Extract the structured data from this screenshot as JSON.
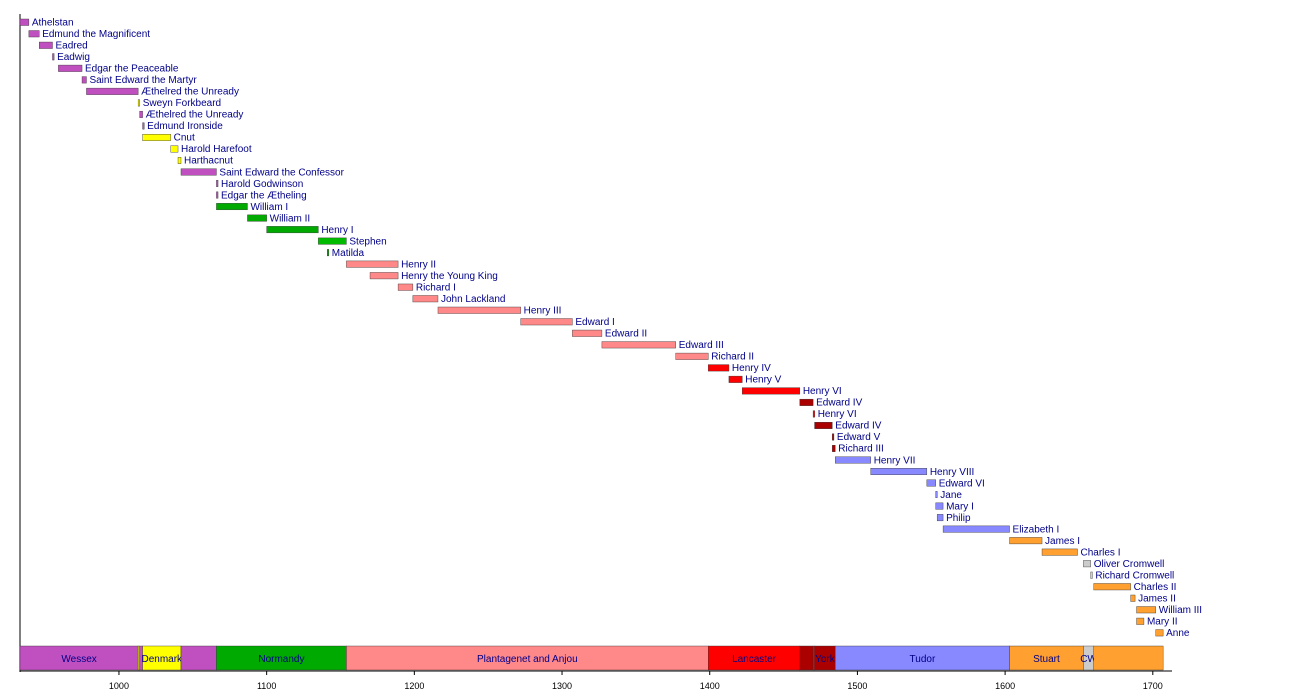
{
  "chart_data": {
    "type": "timeline",
    "title": "",
    "xlim": [
      933,
      1713
    ],
    "ticks": [
      1000,
      1100,
      1200,
      1300,
      1400,
      1500,
      1600,
      1700
    ],
    "colors": {
      "Wessex": "#c050c0",
      "Denmark": "#ffff00",
      "Normandy": "#00aa00",
      "Blois": "#00bb00",
      "Plantagenet and Anjou": "#ff8888",
      "Lancaster": "#ff0000",
      "York": "#aa0000",
      "Tudor": "#8888ff",
      "Stuart": "#ffa030",
      "Commonwealth": "#cccccc"
    },
    "reigns": [
      {
        "name": "Athelstan",
        "start": 924,
        "end": 939,
        "house": "Wessex"
      },
      {
        "name": "Edmund the Magnificent",
        "start": 939,
        "end": 946,
        "house": "Wessex"
      },
      {
        "name": "Eadred",
        "start": 946,
        "end": 955,
        "house": "Wessex"
      },
      {
        "name": "Eadwig",
        "start": 955,
        "end": 956,
        "house": "Wessex"
      },
      {
        "name": "Edgar the Peaceable",
        "start": 959,
        "end": 975,
        "house": "Wessex"
      },
      {
        "name": "Saint Edward the Martyr",
        "start": 975,
        "end": 978,
        "house": "Wessex"
      },
      {
        "name": "Æthelred the Unready",
        "start": 978,
        "end": 1013,
        "house": "Wessex"
      },
      {
        "name": "Sweyn Forkbeard",
        "start": 1013,
        "end": 1014,
        "house": "Denmark"
      },
      {
        "name": "Æthelred the Unready",
        "start": 1014,
        "end": 1016,
        "house": "Wessex"
      },
      {
        "name": "Edmund Ironside",
        "start": 1016,
        "end": 1016.6,
        "house": "Wessex"
      },
      {
        "name": "Cnut",
        "start": 1016,
        "end": 1035,
        "house": "Denmark"
      },
      {
        "name": "Harold Harefoot",
        "start": 1035,
        "end": 1040,
        "house": "Denmark"
      },
      {
        "name": "Harthacnut",
        "start": 1040,
        "end": 1042,
        "house": "Denmark"
      },
      {
        "name": "Saint Edward the Confessor",
        "start": 1042,
        "end": 1066,
        "house": "Wessex"
      },
      {
        "name": "Harold Godwinson",
        "start": 1066,
        "end": 1066.6,
        "house": "Wessex"
      },
      {
        "name": "Edgar the Ætheling",
        "start": 1066,
        "end": 1066.6,
        "house": "Wessex"
      },
      {
        "name": "William I",
        "start": 1066,
        "end": 1087,
        "house": "Normandy"
      },
      {
        "name": "William II",
        "start": 1087,
        "end": 1100,
        "house": "Normandy"
      },
      {
        "name": "Henry I",
        "start": 1100,
        "end": 1135,
        "house": "Normandy"
      },
      {
        "name": "Stephen",
        "start": 1135,
        "end": 1154,
        "house": "Blois"
      },
      {
        "name": "Matilda",
        "start": 1141,
        "end": 1141.6,
        "house": "Normandy"
      },
      {
        "name": "Henry II",
        "start": 1154,
        "end": 1189,
        "house": "Plantagenet and Anjou"
      },
      {
        "name": "Henry the Young King",
        "start": 1170,
        "end": 1189,
        "house": "Plantagenet and Anjou"
      },
      {
        "name": "Richard I",
        "start": 1189,
        "end": 1199,
        "house": "Plantagenet and Anjou"
      },
      {
        "name": "John Lackland",
        "start": 1199,
        "end": 1216,
        "house": "Plantagenet and Anjou"
      },
      {
        "name": "Henry III",
        "start": 1216,
        "end": 1272,
        "house": "Plantagenet and Anjou"
      },
      {
        "name": "Edward I",
        "start": 1272,
        "end": 1307,
        "house": "Plantagenet and Anjou"
      },
      {
        "name": "Edward II",
        "start": 1307,
        "end": 1327,
        "house": "Plantagenet and Anjou"
      },
      {
        "name": "Edward III",
        "start": 1327,
        "end": 1377,
        "house": "Plantagenet and Anjou"
      },
      {
        "name": "Richard II",
        "start": 1377,
        "end": 1399,
        "house": "Plantagenet and Anjou"
      },
      {
        "name": "Henry IV",
        "start": 1399,
        "end": 1413,
        "house": "Lancaster"
      },
      {
        "name": "Henry V",
        "start": 1413,
        "end": 1422,
        "house": "Lancaster"
      },
      {
        "name": "Henry VI",
        "start": 1422,
        "end": 1461,
        "house": "Lancaster"
      },
      {
        "name": "Edward IV",
        "start": 1461,
        "end": 1470,
        "house": "York"
      },
      {
        "name": "Henry VI",
        "start": 1470,
        "end": 1471,
        "house": "Lancaster"
      },
      {
        "name": "Edward IV",
        "start": 1471,
        "end": 1483,
        "house": "York"
      },
      {
        "name": "Edward V",
        "start": 1483,
        "end": 1483.6,
        "house": "York"
      },
      {
        "name": "Richard III",
        "start": 1483,
        "end": 1485,
        "house": "York"
      },
      {
        "name": "Henry VII",
        "start": 1485,
        "end": 1509,
        "house": "Tudor"
      },
      {
        "name": "Henry VIII",
        "start": 1509,
        "end": 1547,
        "house": "Tudor"
      },
      {
        "name": "Edward VI",
        "start": 1547,
        "end": 1553,
        "house": "Tudor"
      },
      {
        "name": "Jane",
        "start": 1553,
        "end": 1553.6,
        "house": "Tudor"
      },
      {
        "name": "Mary I",
        "start": 1553,
        "end": 1558,
        "house": "Tudor"
      },
      {
        "name": "Philip",
        "start": 1554,
        "end": 1558,
        "house": "Tudor"
      },
      {
        "name": "Elizabeth I",
        "start": 1558,
        "end": 1603,
        "house": "Tudor"
      },
      {
        "name": "James I",
        "start": 1603,
        "end": 1625,
        "house": "Stuart"
      },
      {
        "name": "Charles I",
        "start": 1625,
        "end": 1649,
        "house": "Stuart"
      },
      {
        "name": "Oliver Cromwell",
        "start": 1653,
        "end": 1658,
        "house": "Commonwealth"
      },
      {
        "name": "Richard Cromwell",
        "start": 1658,
        "end": 1659,
        "house": "Commonwealth"
      },
      {
        "name": "Charles II",
        "start": 1660,
        "end": 1685,
        "house": "Stuart"
      },
      {
        "name": "James II",
        "start": 1685,
        "end": 1688,
        "house": "Stuart"
      },
      {
        "name": "William III",
        "start": 1689,
        "end": 1702,
        "house": "Stuart"
      },
      {
        "name": "Mary II",
        "start": 1689,
        "end": 1694,
        "house": "Stuart"
      },
      {
        "name": "Anne",
        "start": 1702,
        "end": 1707,
        "house": "Stuart"
      }
    ],
    "houses": [
      {
        "name": "Wessex",
        "start": 933,
        "end": 1013,
        "color": "#c050c0",
        "label": "Wessex"
      },
      {
        "name": "Denmark",
        "start": 1013,
        "end": 1014,
        "color": "#ffff00",
        "label": ""
      },
      {
        "name": "Wessex",
        "start": 1014,
        "end": 1016,
        "color": "#c050c0",
        "label": ""
      },
      {
        "name": "Denmark",
        "start": 1016,
        "end": 1042,
        "color": "#ffff00",
        "label": "Denmark"
      },
      {
        "name": "Wessex",
        "start": 1042,
        "end": 1066,
        "color": "#c050c0",
        "label": ""
      },
      {
        "name": "Normandy",
        "start": 1066,
        "end": 1154,
        "color": "#00aa00",
        "label": "Normandy"
      },
      {
        "name": "Plantagenet and Anjou",
        "start": 1154,
        "end": 1399,
        "color": "#ff8888",
        "label": "Plantagenet and Anjou"
      },
      {
        "name": "Lancaster",
        "start": 1399,
        "end": 1461,
        "color": "#ff0000",
        "label": "Lancaster"
      },
      {
        "name": "York",
        "start": 1461,
        "end": 1470,
        "color": "#aa0000",
        "label": ""
      },
      {
        "name": "Lancaster",
        "start": 1470,
        "end": 1471,
        "color": "#ff0000",
        "label": ""
      },
      {
        "name": "York",
        "start": 1471,
        "end": 1485,
        "color": "#aa0000",
        "label": "York"
      },
      {
        "name": "Tudor",
        "start": 1485,
        "end": 1603,
        "color": "#8888ff",
        "label": "Tudor"
      },
      {
        "name": "Stuart",
        "start": 1603,
        "end": 1653,
        "color": "#ffa030",
        "label": "Stuart"
      },
      {
        "name": "Commonwealth",
        "start": 1653,
        "end": 1660,
        "color": "#cccccc",
        "label": "CW"
      },
      {
        "name": "Stuart",
        "start": 1660,
        "end": 1707,
        "color": "#ffa030",
        "label": ""
      }
    ]
  }
}
